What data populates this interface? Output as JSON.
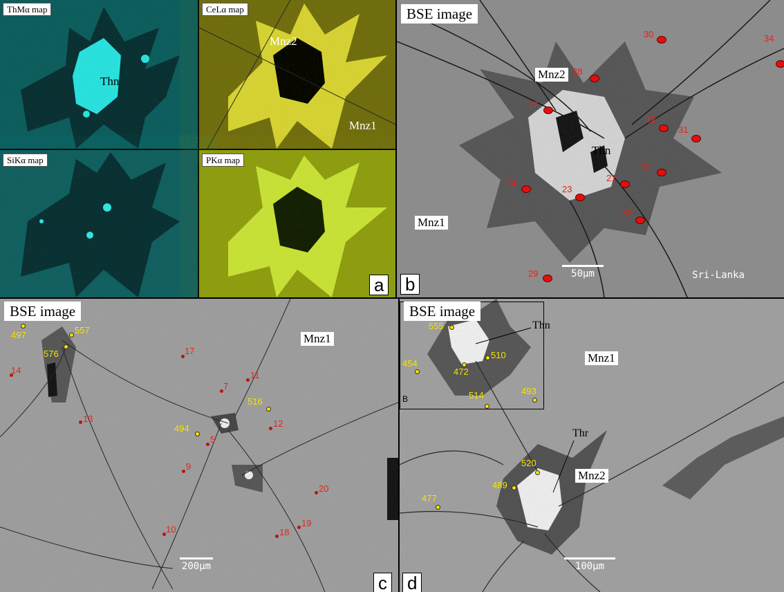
{
  "panel_a": {
    "letter": "a",
    "maps": [
      {
        "label": "ThMα map",
        "phase_label": "Thn"
      },
      {
        "label": "CeLα map",
        "phase_labels": [
          "Mnz2",
          "Mnz1"
        ]
      },
      {
        "label": "SiKα map"
      },
      {
        "label": "PKα map"
      }
    ]
  },
  "panel_b": {
    "letter": "b",
    "title": "BSE image",
    "labels": {
      "mnz2": "Mnz2",
      "thn": "Thn",
      "mnz1": "Mnz1"
    },
    "scale": "50μm",
    "location": "Sri-Lanka",
    "spots": [
      "30",
      "34",
      "28",
      "27",
      "22",
      "31",
      "32",
      "21",
      "24",
      "23",
      "33",
      "29"
    ]
  },
  "panel_c": {
    "letter": "c",
    "title": "BSE image",
    "labels": {
      "mnz1": "Mnz1"
    },
    "scale": "200μm",
    "red_spots": [
      "17",
      "14",
      "11",
      "7",
      "13",
      "12",
      "5",
      "9",
      "20",
      "19",
      "18",
      "10"
    ],
    "yellow_spots": [
      "497",
      "557",
      "576",
      "516",
      "494"
    ]
  },
  "panel_d": {
    "letter": "d",
    "title": "BSE image",
    "labels": {
      "thn": "Thn",
      "mnz1": "Mnz1",
      "thr": "Thr",
      "mnz2": "Mnz2",
      "inset": "B"
    },
    "scale": "100μm",
    "yellow_spots": [
      "555",
      "510",
      "454",
      "472",
      "514",
      "493",
      "520",
      "489",
      "477"
    ]
  }
}
